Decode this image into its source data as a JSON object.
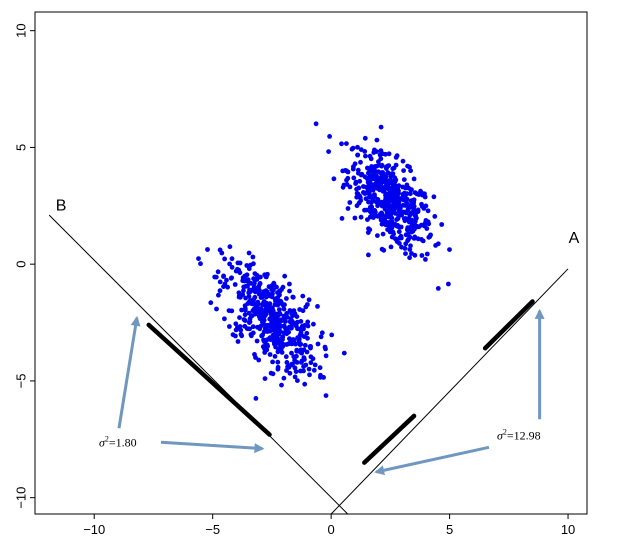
{
  "chart_data": {
    "type": "scatter",
    "xlim": [
      -12.5,
      10.8
    ],
    "ylim": [
      -10.7,
      10.8
    ],
    "x_ticks": [
      -10,
      -5,
      0,
      5,
      10
    ],
    "y_ticks": [
      -10,
      -5,
      0,
      5,
      10
    ],
    "grid": false,
    "colors": {
      "points": "#0000ee",
      "lines": "#000000",
      "arrows": "#6f97bf",
      "frame": "#000000"
    },
    "clusters": [
      {
        "center": [
          2.5,
          2.7
        ],
        "spread": [
          0.9,
          1.1
        ],
        "correlation": -0.6,
        "count": 500
      },
      {
        "center": [
          -2.6,
          -2.3
        ],
        "spread": [
          1.0,
          1.2
        ],
        "correlation": -0.6,
        "count": 500
      }
    ],
    "projection_lines": [
      {
        "name": "A",
        "label": "A",
        "start": [
          0.0,
          -10.7
        ],
        "end": [
          10.0,
          -0.2
        ],
        "projection_segments": [
          [
            1.4,
            -8.5
          ],
          [
            3.5,
            -6.5
          ],
          [
            6.5,
            -3.6
          ],
          [
            8.5,
            -1.6
          ]
        ]
      },
      {
        "name": "B",
        "label": "B",
        "start": [
          -11.9,
          2.1
        ],
        "end": [
          0.7,
          -10.7
        ],
        "projection_segments": [
          [
            -7.7,
            -2.6
          ],
          [
            -2.6,
            -7.3
          ]
        ]
      }
    ],
    "annotations": [
      {
        "label": "σ²=1.80",
        "sigma": "σ",
        "sup": "2",
        "value": "=1.80",
        "text_at": [
          -9.8,
          -7.8
        ],
        "arrows_to": [
          [
            -8.2,
            -2.3
          ],
          [
            -2.9,
            -7.9
          ]
        ]
      },
      {
        "label": "σ²=12.98",
        "sigma": "σ",
        "sup": "2",
        "value": "=12.98",
        "text_at": [
          7.0,
          -7.5
        ],
        "arrows_to": [
          [
            8.8,
            -2.0
          ],
          [
            1.9,
            -8.9
          ]
        ]
      }
    ]
  }
}
